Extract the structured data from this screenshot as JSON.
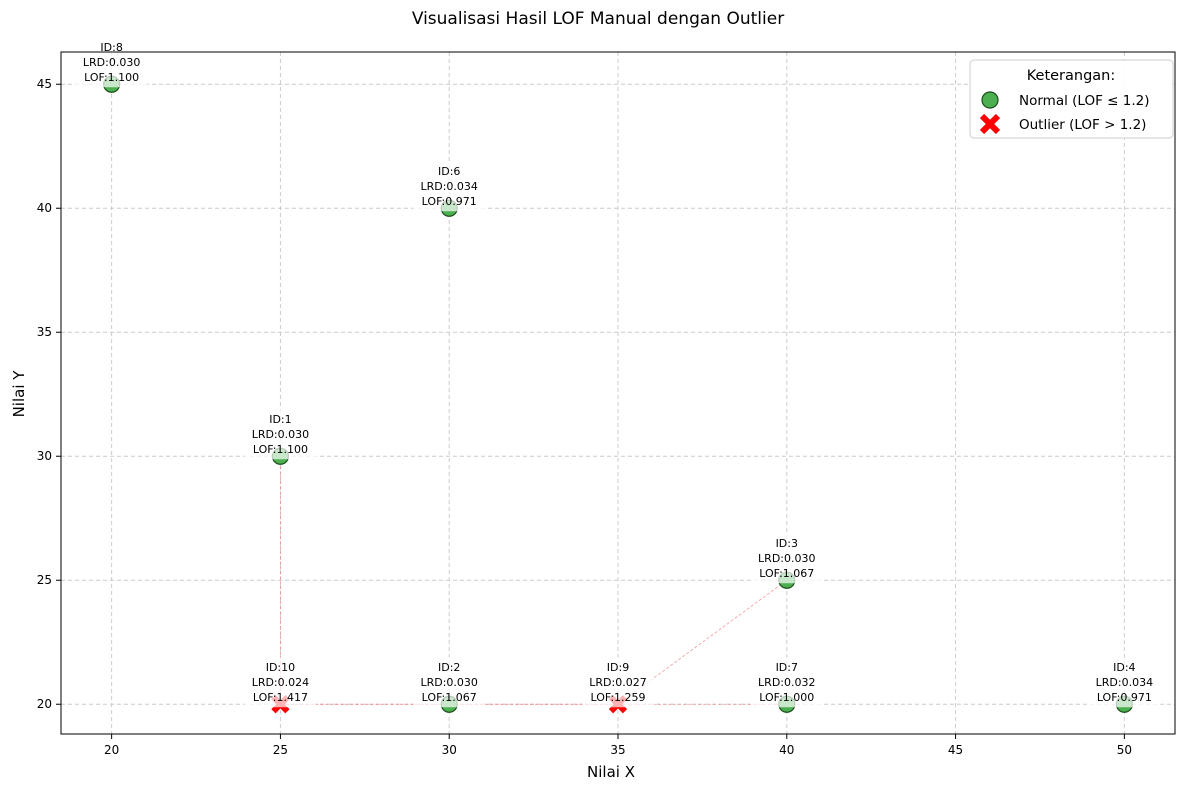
{
  "chart_data": {
    "type": "scatter",
    "title": "Visualisasi Hasil LOF Manual dengan Outlier",
    "xlabel": "Nilai X",
    "ylabel": "Nilai Y",
    "xlim": [
      18.5,
      51.5
    ],
    "ylim": [
      18.8,
      46.3
    ],
    "xticks": [
      20,
      25,
      30,
      35,
      40,
      45,
      50
    ],
    "yticks": [
      20,
      25,
      30,
      35,
      40,
      45
    ],
    "grid": true,
    "legend": {
      "title": "Keterangan:",
      "placement": "top-right",
      "entries": [
        {
          "label": "Normal (LOF ≤ 1.2)",
          "color": "#4caf50",
          "marker": "circle"
        },
        {
          "label": "Outlier (LOF > 1.2)",
          "color": "#ff0000",
          "marker": "x"
        }
      ]
    },
    "colors": {
      "normal": "#4caf50",
      "outlier": "#ff0000",
      "link": "#f08080"
    },
    "points": [
      {
        "id": "ID:1",
        "x": 25,
        "y": 30,
        "lrd": "LRD:0.030",
        "lof": "LOF:1.100",
        "outlier": false
      },
      {
        "id": "ID:2",
        "x": 30,
        "y": 20,
        "lrd": "LRD:0.030",
        "lof": "LOF:1.067",
        "outlier": false
      },
      {
        "id": "ID:3",
        "x": 40,
        "y": 25,
        "lrd": "LRD:0.030",
        "lof": "LOF:1.067",
        "outlier": false
      },
      {
        "id": "ID:4",
        "x": 50,
        "y": 20,
        "lrd": "LRD:0.034",
        "lof": "LOF:0.971",
        "outlier": false
      },
      {
        "id": "ID:6",
        "x": 30,
        "y": 40,
        "lrd": "LRD:0.034",
        "lof": "LOF:0.971",
        "outlier": false
      },
      {
        "id": "ID:7",
        "x": 40,
        "y": 20,
        "lrd": "LRD:0.032",
        "lof": "LOF:1.000",
        "outlier": false
      },
      {
        "id": "ID:8",
        "x": 20,
        "y": 45,
        "lrd": "LRD:0.030",
        "lof": "LOF:1.100",
        "outlier": false
      },
      {
        "id": "ID:9",
        "x": 35,
        "y": 20,
        "lrd": "LRD:0.027",
        "lof": "LOF:1.259",
        "outlier": true
      },
      {
        "id": "ID:10",
        "x": 25,
        "y": 20,
        "lrd": "LRD:0.024",
        "lof": "LOF:1.417",
        "outlier": true
      }
    ],
    "neighbor_links": [
      {
        "from": [
          25,
          20
        ],
        "to": [
          25,
          30
        ]
      },
      {
        "from": [
          25,
          20
        ],
        "to": [
          30,
          20
        ]
      },
      {
        "from": [
          25,
          20
        ],
        "to": [
          35,
          20
        ]
      },
      {
        "from": [
          35,
          20
        ],
        "to": [
          30,
          20
        ]
      },
      {
        "from": [
          35,
          20
        ],
        "to": [
          40,
          20
        ]
      },
      {
        "from": [
          35,
          20
        ],
        "to": [
          40,
          25
        ]
      }
    ]
  }
}
